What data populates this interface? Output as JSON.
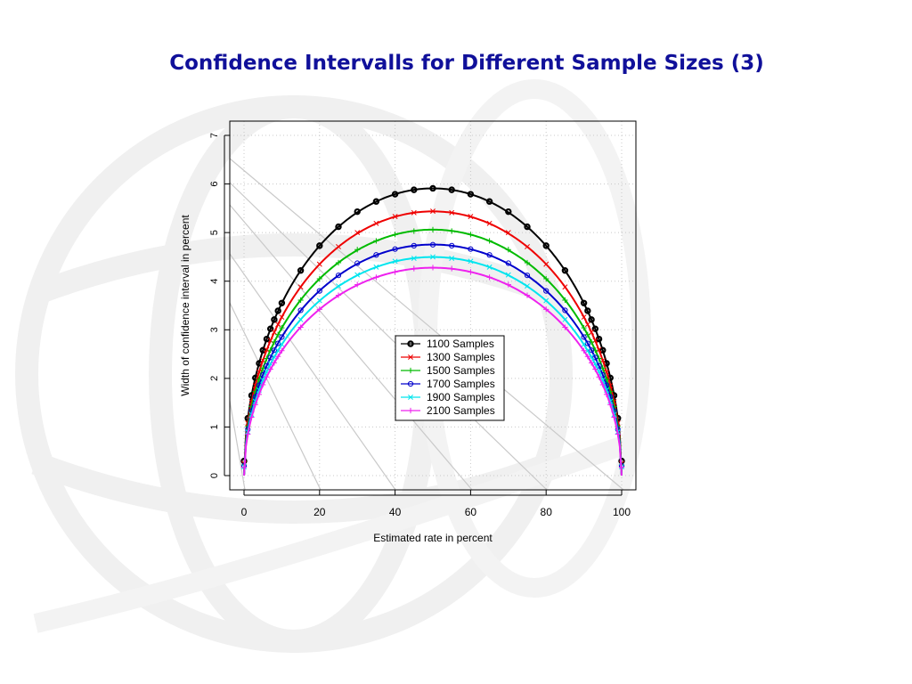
{
  "slide": {
    "title": "Confidence Intervalls for Different Sample Sizes (3)"
  },
  "background": {
    "watermark": "globe-logo"
  },
  "chart_data": {
    "type": "line",
    "title": "",
    "xlabel": "Estimated rate in percent",
    "ylabel": "Width of confidence interval in percent",
    "xlim": [
      0,
      100
    ],
    "ylim": [
      0,
      7
    ],
    "xticks": [
      "0",
      "20",
      "40",
      "60",
      "80",
      "100"
    ],
    "yticks": [
      "0",
      "1",
      "2",
      "3",
      "4",
      "5",
      "6",
      "7"
    ],
    "grid": true,
    "legend_position": "center-bottom",
    "formula": "2*1.96*sqrt(p*(100-p)/n)",
    "x": [
      0,
      1,
      2,
      3,
      4,
      5,
      6,
      7,
      8,
      9,
      10,
      15,
      20,
      25,
      30,
      35,
      40,
      45,
      50,
      55,
      60,
      65,
      70,
      75,
      80,
      85,
      90,
      91,
      92,
      93,
      94,
      95,
      96,
      97,
      98,
      99,
      100
    ],
    "series": [
      {
        "name": "1100 Samples",
        "n": 1100,
        "color": "#000000",
        "marker": "o",
        "values": [
          0.3,
          1.18,
          1.65,
          2.01,
          2.31,
          2.58,
          2.81,
          3.02,
          3.21,
          3.39,
          3.55,
          4.22,
          4.73,
          5.12,
          5.43,
          5.64,
          5.79,
          5.88,
          5.91,
          5.88,
          5.79,
          5.64,
          5.43,
          5.12,
          4.73,
          4.22,
          3.55,
          3.39,
          3.21,
          3.02,
          2.81,
          2.58,
          2.31,
          2.01,
          1.65,
          1.18,
          0.3
        ]
      },
      {
        "name": "1300 Samples",
        "n": 1300,
        "color": "#ee0000",
        "marker": "x",
        "values": [
          0.25,
          1.08,
          1.52,
          1.85,
          2.13,
          2.37,
          2.59,
          2.78,
          2.95,
          3.11,
          3.26,
          3.88,
          4.35,
          4.71,
          5.0,
          5.19,
          5.33,
          5.41,
          5.44,
          5.41,
          5.33,
          5.19,
          5.0,
          4.71,
          4.35,
          3.88,
          3.26,
          3.11,
          2.95,
          2.78,
          2.59,
          2.37,
          2.13,
          1.85,
          1.52,
          1.08,
          0.25
        ]
      },
      {
        "name": "1500 Samples",
        "n": 1500,
        "color": "#00bb00",
        "marker": "+",
        "values": [
          0.22,
          1.01,
          1.42,
          1.73,
          1.98,
          2.21,
          2.41,
          2.58,
          2.75,
          2.9,
          3.04,
          3.61,
          4.05,
          4.38,
          4.65,
          4.83,
          4.96,
          5.03,
          5.06,
          5.03,
          4.96,
          4.83,
          4.65,
          4.38,
          4.05,
          3.61,
          3.04,
          2.9,
          2.75,
          2.58,
          2.41,
          2.21,
          1.98,
          1.73,
          1.42,
          1.01,
          0.22
        ]
      },
      {
        "name": "1700 Samples",
        "n": 1700,
        "color": "#0000cc",
        "marker": "o",
        "values": [
          0.2,
          0.95,
          1.33,
          1.62,
          1.86,
          2.07,
          2.26,
          2.43,
          2.58,
          2.72,
          2.85,
          3.4,
          3.8,
          4.12,
          4.37,
          4.54,
          4.66,
          4.73,
          4.75,
          4.73,
          4.66,
          4.54,
          4.37,
          4.12,
          3.8,
          3.4,
          2.85,
          2.72,
          2.58,
          2.43,
          2.26,
          2.07,
          1.86,
          1.62,
          1.33,
          0.95,
          0.2
        ]
      },
      {
        "name": "1900 Samples",
        "n": 1900,
        "color": "#00e5ee",
        "marker": "x",
        "values": [
          0.18,
          0.9,
          1.26,
          1.53,
          1.76,
          1.96,
          2.14,
          2.3,
          2.44,
          2.57,
          2.7,
          3.21,
          3.6,
          3.9,
          4.13,
          4.29,
          4.41,
          4.47,
          4.5,
          4.47,
          4.41,
          4.29,
          4.13,
          3.9,
          3.6,
          3.21,
          2.7,
          2.57,
          2.44,
          2.3,
          2.14,
          1.96,
          1.76,
          1.53,
          1.26,
          0.9,
          0.18
        ]
      },
      {
        "name": "2100 Samples",
        "n": 2100,
        "color": "#ee22ee",
        "marker": "+",
        "values": [
          0.17,
          0.85,
          1.2,
          1.46,
          1.67,
          1.87,
          2.03,
          2.19,
          2.32,
          2.45,
          2.57,
          3.05,
          3.42,
          3.71,
          3.93,
          4.08,
          4.19,
          4.26,
          4.28,
          4.26,
          4.19,
          4.08,
          3.93,
          3.71,
          3.42,
          3.05,
          2.57,
          2.45,
          2.32,
          2.19,
          2.03,
          1.87,
          1.67,
          1.46,
          1.2,
          0.85,
          0.17
        ]
      }
    ]
  }
}
